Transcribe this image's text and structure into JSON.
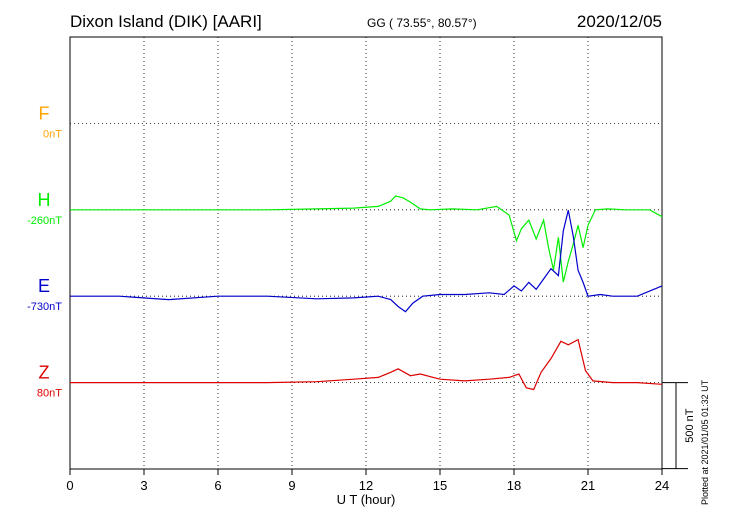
{
  "header": {
    "station": "Dixon Island (DIK)  [AARI]",
    "coords": "GG ( 73.55°,  80.57°)",
    "date": "2020/12/05"
  },
  "footer": {
    "plotted": "Plotted at 2021/01/05 01:32 UT"
  },
  "chart_data": {
    "type": "line",
    "xlabel": "U T (hour)",
    "xlim": [
      0,
      24
    ],
    "xticks": [
      0,
      3,
      6,
      9,
      12,
      15,
      18,
      21,
      24
    ],
    "scale_bar": {
      "label": "500 nT",
      "value_nT": 500
    },
    "channels": [
      {
        "name": "F",
        "offset": "0nT",
        "color": "#ffa500",
        "baseline_row": 1
      },
      {
        "name": "H",
        "offset": "-260nT",
        "color": "#00ee00",
        "baseline_row": 2
      },
      {
        "name": "E",
        "offset": "-730nT",
        "color": "#0000cc",
        "baseline_row": 3
      },
      {
        "name": "Z",
        "offset": "80nT",
        "color": "#dd0000",
        "baseline_row": 4
      }
    ],
    "series": [
      {
        "name": "H",
        "color": "#00ee00",
        "x": [
          0,
          2,
          4,
          6,
          8,
          10,
          11.5,
          12.5,
          13,
          13.2,
          13.5,
          13.8,
          14.2,
          14.6,
          15.5,
          16.5,
          17.3,
          17.8,
          18.1,
          18.3,
          18.6,
          18.9,
          19.2,
          19.4,
          19.6,
          19.8,
          20.0,
          20.2,
          20.4,
          20.6,
          20.8,
          21.0,
          21.3,
          21.8,
          22.5,
          23.5,
          24
        ],
        "y": [
          0,
          0,
          0,
          0,
          0,
          5,
          10,
          20,
          50,
          80,
          70,
          45,
          5,
          0,
          5,
          0,
          20,
          -30,
          -180,
          -110,
          -60,
          -170,
          -60,
          -220,
          -350,
          -160,
          -420,
          -300,
          -200,
          -90,
          -220,
          -90,
          0,
          5,
          0,
          0,
          -40
        ]
      },
      {
        "name": "E",
        "color": "#0000cc",
        "x": [
          0,
          2,
          4,
          6,
          8,
          10,
          11.5,
          12.5,
          13,
          13.3,
          13.6,
          13.9,
          14.3,
          15,
          16,
          17,
          17.6,
          18.0,
          18.3,
          18.6,
          18.9,
          19.2,
          19.5,
          19.8,
          20.0,
          20.2,
          20.4,
          20.6,
          20.8,
          21.0,
          21.5,
          22,
          23,
          24
        ],
        "y": [
          0,
          0,
          -20,
          0,
          0,
          -15,
          -10,
          0,
          -20,
          -60,
          -90,
          -40,
          0,
          10,
          10,
          20,
          10,
          60,
          30,
          80,
          40,
          100,
          160,
          120,
          380,
          500,
          350,
          150,
          80,
          0,
          10,
          0,
          0,
          60
        ]
      },
      {
        "name": "Z",
        "color": "#dd0000",
        "x": [
          0,
          2,
          4,
          6,
          8,
          10,
          11.5,
          12.5,
          13,
          13.3,
          13.8,
          14.2,
          15,
          16,
          17,
          17.8,
          18.2,
          18.5,
          18.8,
          19.1,
          19.5,
          19.9,
          20.2,
          20.6,
          20.9,
          21.2,
          22,
          23,
          24
        ],
        "y": [
          0,
          0,
          0,
          0,
          0,
          5,
          20,
          30,
          60,
          80,
          40,
          50,
          20,
          10,
          20,
          30,
          50,
          -30,
          -40,
          60,
          140,
          240,
          220,
          250,
          70,
          10,
          0,
          0,
          -10
        ]
      }
    ]
  }
}
